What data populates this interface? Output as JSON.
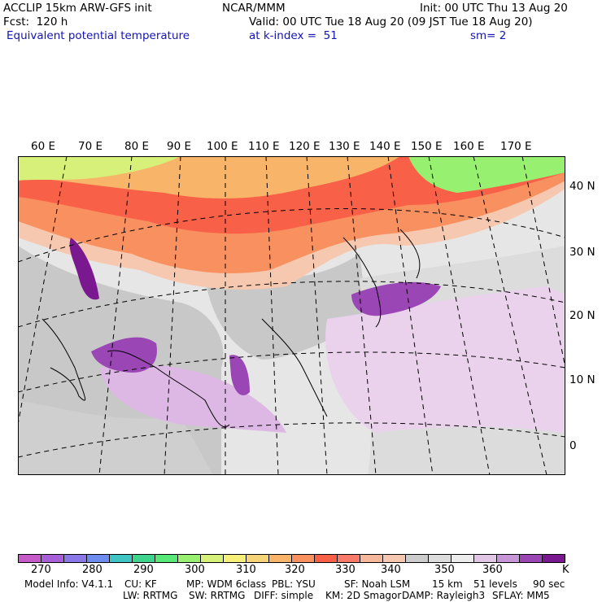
{
  "header": {
    "model": "ACCLIP 15km ARW-GFS init",
    "center": "NCAR/MMM",
    "init": "Init: 00 UTC Thu 13 Aug 20",
    "fcst": "Fcst:  120 h",
    "valid": "Valid: 00 UTC Tue 18 Aug 20 (09 JST Tue 18 Aug 20)",
    "field": "Equivalent potential temperature",
    "level": "at k-index =  51",
    "smooth": "sm= 2"
  },
  "map": {
    "lon_labels": [
      "60 E",
      "70 E",
      "80 E",
      "90 E",
      "100 E",
      "110 E",
      "120 E",
      "130 E",
      "140 E",
      "150 E",
      "160 E",
      "170 E"
    ],
    "lat_labels": [
      "40 N",
      "30 N",
      "20 N",
      "10 N",
      "0"
    ]
  },
  "colorbar": {
    "colors": [
      "#c65ac8",
      "#a860d8",
      "#8a78e6",
      "#6e8cf0",
      "#3fc4c4",
      "#3ed48e",
      "#58e878",
      "#98f070",
      "#d6f07a",
      "#f6f07a",
      "#f8d478",
      "#f8b468",
      "#f89060",
      "#f86048",
      "#fa7a6a",
      "#f6b89a",
      "#f6c8b0",
      "#cccccc",
      "#dcdcdc",
      "#ececec",
      "#e2c6e6",
      "#c696d8",
      "#9a46b4",
      "#7a1890"
    ],
    "labels": [
      "270",
      "280",
      "290",
      "300",
      "310",
      "320",
      "330",
      "340",
      "350",
      "360"
    ],
    "unit": "K"
  },
  "footer": {
    "line1": [
      "Model Info: V4.1.1",
      "CU: KF",
      "MP: WDM 6class",
      "PBL: YSU",
      "SF: Noah LSM",
      "15 km",
      "51 levels",
      "90 sec"
    ],
    "line2": [
      "LW: RRTMG",
      "SW: RRTMG",
      "DIFF: simple",
      "KM: 2D Smagor",
      "DAMP: Rayleigh3",
      "SFLAY: MM5"
    ]
  }
}
